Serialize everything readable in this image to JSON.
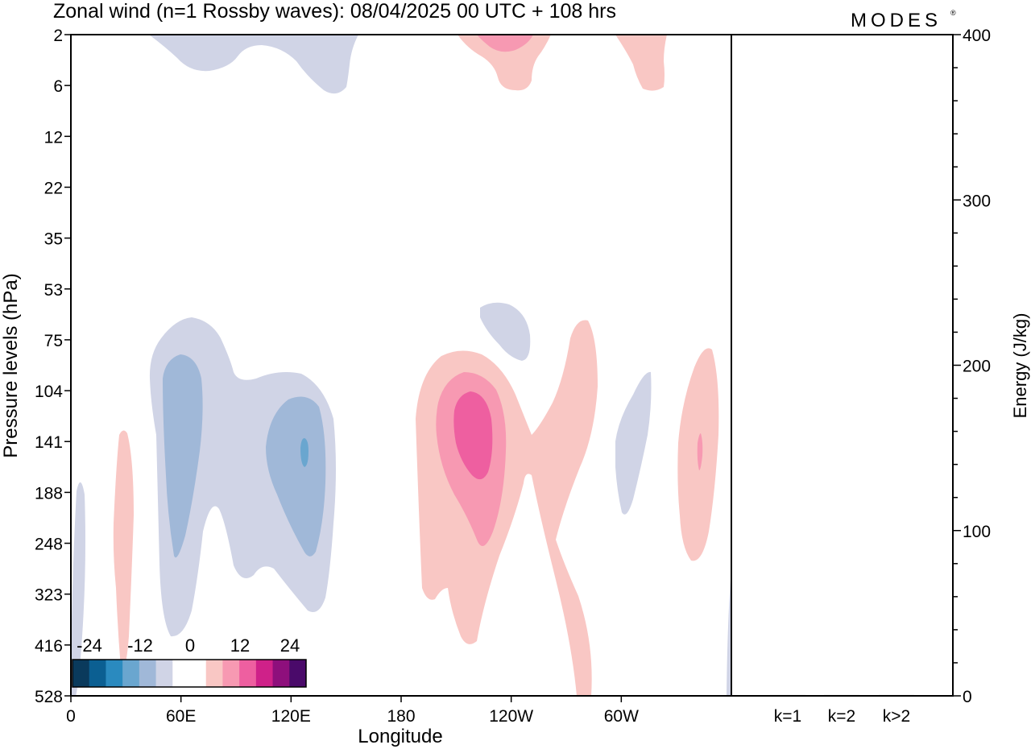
{
  "title": "Zonal wind (n=1 Rossby waves):  08/04/2025  00 UTC  + 108 hrs",
  "brand": "MODES",
  "brand_mark": "®",
  "chart_data": [
    {
      "type": "heatmap",
      "description_kind": "filled contour cross-section",
      "xlabel": "Longitude",
      "ylabel": "Pressure levels (hPa)",
      "x_ticks": [
        {
          "label": "0",
          "lon": 0
        },
        {
          "label": "60E",
          "lon": 60
        },
        {
          "label": "120E",
          "lon": 120
        },
        {
          "label": "180",
          "lon": 180
        },
        {
          "label": "120W",
          "lon": 240
        },
        {
          "label": "60W",
          "lon": 300
        }
      ],
      "xlim": [
        0,
        360
      ],
      "y_ticks": [
        "2",
        "6",
        "12",
        "22",
        "35",
        "53",
        "75",
        "104",
        "141",
        "188",
        "248",
        "323",
        "416",
        "528"
      ],
      "colorbar": {
        "labels": [
          "-24",
          "-12",
          "0",
          "12",
          "24"
        ],
        "colors": [
          "#0a3a5c",
          "#0b5f92",
          "#2a8abf",
          "#6aa6cf",
          "#a0b8d8",
          "#d0d4e6",
          "#ffffff",
          "#ffffff",
          "#f9c7c4",
          "#f799b2",
          "#ee5fa0",
          "#cf2189",
          "#8e0f7c",
          "#4a0a6a"
        ]
      },
      "contours": [
        {
          "value": "-4",
          "color": "#d0d4e6"
        },
        {
          "value": "-8",
          "color": "#a0b8d8"
        },
        {
          "value": "-12",
          "color": "#6aa6cf"
        },
        {
          "value": "4",
          "color": "#f9c7c4"
        },
        {
          "value": "8",
          "color": "#f799b2"
        },
        {
          "value": "12",
          "color": "#ee5fa0"
        }
      ]
    },
    {
      "type": "bar",
      "categories": [
        "k=1",
        "k=2",
        "k>2"
      ],
      "values": [
        0.5,
        0.5,
        0.5
      ],
      "ylabel": "Energy (J/kg)",
      "ylim": [
        0,
        400
      ],
      "y_ticks": [
        "0",
        "100",
        "200",
        "300",
        "400"
      ]
    }
  ]
}
